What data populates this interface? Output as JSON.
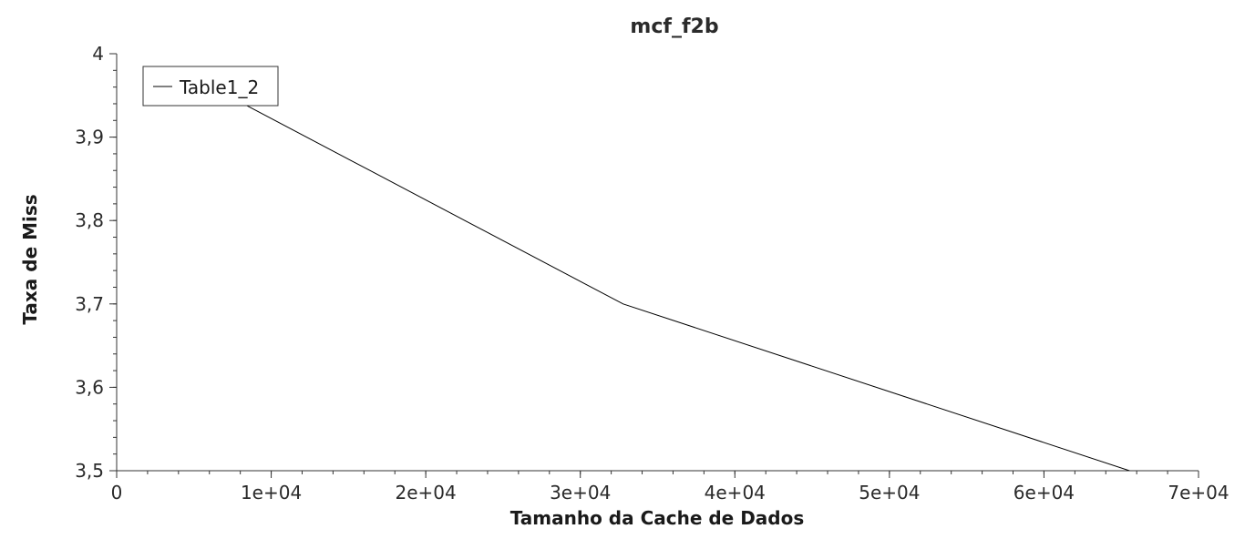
{
  "chart_data": {
    "type": "line",
    "title": "mcf_f2b",
    "xlabel": "Tamanho da Cache de Dados",
    "ylabel": "Taxa de Miss",
    "xlim": [
      0,
      70000
    ],
    "ylim": [
      3.5,
      4.0
    ],
    "x_ticks": [
      {
        "value": 0,
        "label": "0"
      },
      {
        "value": 10000,
        "label": "1e+04"
      },
      {
        "value": 20000,
        "label": "2e+04"
      },
      {
        "value": 30000,
        "label": "3e+04"
      },
      {
        "value": 40000,
        "label": "4e+04"
      },
      {
        "value": 50000,
        "label": "5e+04"
      },
      {
        "value": 60000,
        "label": "6e+04"
      },
      {
        "value": 70000,
        "label": "7e+04"
      }
    ],
    "y_ticks": [
      {
        "value": 3.5,
        "label": "3,5"
      },
      {
        "value": 3.6,
        "label": "3,6"
      },
      {
        "value": 3.7,
        "label": "3,7"
      },
      {
        "value": 3.8,
        "label": "3,8"
      },
      {
        "value": 3.9,
        "label": "3,9"
      },
      {
        "value": 4.0,
        "label": "4"
      }
    ],
    "grid": false,
    "legend_position": "top-left",
    "series": [
      {
        "name": "Table1_2",
        "color": "#000000",
        "x": [
          4096,
          8192,
          16384,
          32768,
          65536
        ],
        "y": [
          3.97,
          3.94,
          3.86,
          3.7,
          3.5
        ]
      }
    ]
  }
}
